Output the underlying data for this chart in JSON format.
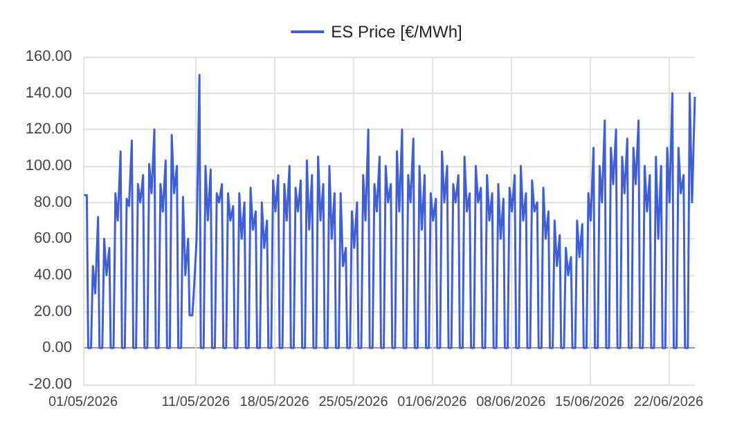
{
  "chart_data": {
    "type": "line",
    "legend": "top",
    "grid": true,
    "marker": "none",
    "line_style": "solid",
    "ylim": [
      -20,
      160
    ],
    "yticks": [
      {
        "value": -20,
        "label": "-20.00"
      },
      {
        "value": 0,
        "label": "0.00"
      },
      {
        "value": 20,
        "label": "20.00"
      },
      {
        "value": 40,
        "label": "40.00"
      },
      {
        "value": 60,
        "label": "60.00"
      },
      {
        "value": 80,
        "label": "80.00"
      },
      {
        "value": 100,
        "label": "100.00"
      },
      {
        "value": 120,
        "label": "120.00"
      },
      {
        "value": 140,
        "label": "140.00"
      },
      {
        "value": 160,
        "label": "160.00"
      }
    ],
    "xlim": [
      "2026-05-01",
      "2026-06-24T08:00"
    ],
    "xticks": [
      {
        "value": "2026-05-01",
        "label": "01/05/2026"
      },
      {
        "value": "2026-05-11",
        "label": "11/05/2026"
      },
      {
        "value": "2026-05-18",
        "label": "18/05/2026"
      },
      {
        "value": "2026-05-25",
        "label": "25/05/2026"
      },
      {
        "value": "2026-06-01",
        "label": "01/06/2026"
      },
      {
        "value": "2026-06-08",
        "label": "08/06/2026"
      },
      {
        "value": "2026-06-15",
        "label": "15/06/2026"
      },
      {
        "value": "2026-06-22",
        "label": "22/06/2026"
      }
    ],
    "series": [
      {
        "name": "ES Price [€/MWh]",
        "color": "#3f5fd4",
        "x": [
          "2026-05-01T02:00",
          "2026-05-01T08:00",
          "2026-05-01T11:00",
          "2026-05-01T17:00",
          "2026-05-01T21:00",
          "2026-05-02T02:00",
          "2026-05-02T08:00",
          "2026-05-02T11:00",
          "2026-05-02T17:00",
          "2026-05-02T21:00",
          "2026-05-03T02:00",
          "2026-05-03T08:00",
          "2026-05-03T11:00",
          "2026-05-03T17:00",
          "2026-05-03T21:00",
          "2026-05-04T02:00",
          "2026-05-04T08:00",
          "2026-05-04T11:00",
          "2026-05-04T17:00",
          "2026-05-04T21:00",
          "2026-05-05T02:00",
          "2026-05-05T08:00",
          "2026-05-05T11:00",
          "2026-05-05T17:00",
          "2026-05-05T21:00",
          "2026-05-06T02:00",
          "2026-05-06T08:00",
          "2026-05-06T11:00",
          "2026-05-06T17:00",
          "2026-05-06T21:00",
          "2026-05-07T02:00",
          "2026-05-07T08:00",
          "2026-05-07T11:00",
          "2026-05-07T17:00",
          "2026-05-07T21:00",
          "2026-05-08T02:00",
          "2026-05-08T08:00",
          "2026-05-08T11:00",
          "2026-05-08T17:00",
          "2026-05-08T21:00",
          "2026-05-09T02:00",
          "2026-05-09T08:00",
          "2026-05-09T11:00",
          "2026-05-09T17:00",
          "2026-05-09T21:00",
          "2026-05-10T02:00",
          "2026-05-10T08:00",
          "2026-05-10T11:00",
          "2026-05-10T17:00",
          "2026-05-10T21:00",
          "2026-05-11T02:00",
          "2026-05-11T08:00",
          "2026-05-11T11:00",
          "2026-05-11T17:00",
          "2026-05-11T21:00",
          "2026-05-12T02:00",
          "2026-05-12T08:00",
          "2026-05-12T11:00",
          "2026-05-12T17:00",
          "2026-05-12T21:00",
          "2026-05-13T02:00",
          "2026-05-13T08:00",
          "2026-05-13T11:00",
          "2026-05-13T17:00",
          "2026-05-13T21:00",
          "2026-05-14T02:00",
          "2026-05-14T08:00",
          "2026-05-14T11:00",
          "2026-05-14T17:00",
          "2026-05-14T21:00",
          "2026-05-15T02:00",
          "2026-05-15T08:00",
          "2026-05-15T11:00",
          "2026-05-15T17:00",
          "2026-05-15T21:00",
          "2026-05-16T02:00",
          "2026-05-16T08:00",
          "2026-05-16T11:00",
          "2026-05-16T17:00",
          "2026-05-16T21:00",
          "2026-05-17T02:00",
          "2026-05-17T08:00",
          "2026-05-17T11:00",
          "2026-05-17T17:00",
          "2026-05-17T21:00",
          "2026-05-18T02:00",
          "2026-05-18T08:00",
          "2026-05-18T11:00",
          "2026-05-18T17:00",
          "2026-05-18T21:00",
          "2026-05-19T02:00",
          "2026-05-19T08:00",
          "2026-05-19T11:00",
          "2026-05-19T17:00",
          "2026-05-19T21:00",
          "2026-05-20T02:00",
          "2026-05-20T08:00",
          "2026-05-20T11:00",
          "2026-05-20T17:00",
          "2026-05-20T21:00",
          "2026-05-21T02:00",
          "2026-05-21T08:00",
          "2026-05-21T11:00",
          "2026-05-21T17:00",
          "2026-05-21T21:00",
          "2026-05-22T02:00",
          "2026-05-22T08:00",
          "2026-05-22T11:00",
          "2026-05-22T17:00",
          "2026-05-22T21:00",
          "2026-05-23T02:00",
          "2026-05-23T08:00",
          "2026-05-23T11:00",
          "2026-05-23T17:00",
          "2026-05-23T21:00",
          "2026-05-24T02:00",
          "2026-05-24T08:00",
          "2026-05-24T11:00",
          "2026-05-24T17:00",
          "2026-05-24T21:00",
          "2026-05-25T02:00",
          "2026-05-25T08:00",
          "2026-05-25T11:00",
          "2026-05-25T17:00",
          "2026-05-25T21:00",
          "2026-05-26T02:00",
          "2026-05-26T08:00",
          "2026-05-26T11:00",
          "2026-05-26T17:00",
          "2026-05-26T21:00",
          "2026-05-27T02:00",
          "2026-05-27T08:00",
          "2026-05-27T11:00",
          "2026-05-27T17:00",
          "2026-05-27T21:00",
          "2026-05-28T02:00",
          "2026-05-28T08:00",
          "2026-05-28T11:00",
          "2026-05-28T17:00",
          "2026-05-28T21:00",
          "2026-05-29T02:00",
          "2026-05-29T08:00",
          "2026-05-29T11:00",
          "2026-05-29T17:00",
          "2026-05-29T21:00",
          "2026-05-30T02:00",
          "2026-05-30T08:00",
          "2026-05-30T11:00",
          "2026-05-30T17:00",
          "2026-05-30T21:00",
          "2026-05-31T02:00",
          "2026-05-31T08:00",
          "2026-05-31T11:00",
          "2026-05-31T17:00",
          "2026-05-31T21:00",
          "2026-06-01T02:00",
          "2026-06-01T08:00",
          "2026-06-01T11:00",
          "2026-06-01T17:00",
          "2026-06-01T21:00",
          "2026-06-02T02:00",
          "2026-06-02T08:00",
          "2026-06-02T11:00",
          "2026-06-02T17:00",
          "2026-06-02T21:00",
          "2026-06-03T02:00",
          "2026-06-03T08:00",
          "2026-06-03T11:00",
          "2026-06-03T17:00",
          "2026-06-03T21:00",
          "2026-06-04T02:00",
          "2026-06-04T08:00",
          "2026-06-04T11:00",
          "2026-06-04T17:00",
          "2026-06-04T21:00",
          "2026-06-05T02:00",
          "2026-06-05T08:00",
          "2026-06-05T11:00",
          "2026-06-05T17:00",
          "2026-06-05T21:00",
          "2026-06-06T02:00",
          "2026-06-06T08:00",
          "2026-06-06T11:00",
          "2026-06-06T17:00",
          "2026-06-06T21:00",
          "2026-06-07T02:00",
          "2026-06-07T08:00",
          "2026-06-07T11:00",
          "2026-06-07T17:00",
          "2026-06-07T21:00",
          "2026-06-08T02:00",
          "2026-06-08T08:00",
          "2026-06-08T11:00",
          "2026-06-08T17:00",
          "2026-06-08T21:00",
          "2026-06-09T02:00",
          "2026-06-09T08:00",
          "2026-06-09T11:00",
          "2026-06-09T17:00",
          "2026-06-09T21:00",
          "2026-06-10T02:00",
          "2026-06-10T08:00",
          "2026-06-10T11:00",
          "2026-06-10T17:00",
          "2026-06-10T21:00",
          "2026-06-11T02:00",
          "2026-06-11T08:00",
          "2026-06-11T11:00",
          "2026-06-11T17:00",
          "2026-06-11T21:00",
          "2026-06-12T02:00",
          "2026-06-12T08:00",
          "2026-06-12T11:00",
          "2026-06-12T17:00",
          "2026-06-12T21:00",
          "2026-06-13T02:00",
          "2026-06-13T08:00",
          "2026-06-13T11:00",
          "2026-06-13T17:00",
          "2026-06-13T21:00",
          "2026-06-14T02:00",
          "2026-06-14T08:00",
          "2026-06-14T11:00",
          "2026-06-14T17:00",
          "2026-06-14T21:00",
          "2026-06-15T02:00",
          "2026-06-15T08:00",
          "2026-06-15T11:00",
          "2026-06-15T17:00",
          "2026-06-15T21:00",
          "2026-06-16T02:00",
          "2026-06-16T08:00",
          "2026-06-16T11:00",
          "2026-06-16T17:00",
          "2026-06-16T21:00",
          "2026-06-17T02:00",
          "2026-06-17T08:00",
          "2026-06-17T11:00",
          "2026-06-17T17:00",
          "2026-06-17T21:00",
          "2026-06-18T02:00",
          "2026-06-18T08:00",
          "2026-06-18T11:00",
          "2026-06-18T17:00",
          "2026-06-18T21:00",
          "2026-06-19T02:00",
          "2026-06-19T08:00",
          "2026-06-19T11:00",
          "2026-06-19T17:00",
          "2026-06-19T21:00",
          "2026-06-20T02:00",
          "2026-06-20T08:00",
          "2026-06-20T11:00",
          "2026-06-20T17:00",
          "2026-06-20T21:00",
          "2026-06-21T02:00",
          "2026-06-21T08:00",
          "2026-06-21T11:00",
          "2026-06-21T17:00",
          "2026-06-21T21:00",
          "2026-06-22T02:00",
          "2026-06-22T08:00",
          "2026-06-22T11:00",
          "2026-06-22T17:00",
          "2026-06-22T21:00",
          "2026-06-23T02:00",
          "2026-06-23T08:00",
          "2026-06-23T11:00",
          "2026-06-23T17:00",
          "2026-06-23T21:00",
          "2026-06-24T02:00",
          "2026-06-24T08:00"
        ],
        "values": [
          84,
          84,
          0,
          0,
          45,
          30,
          72,
          0,
          0,
          60,
          40,
          55,
          0,
          0,
          85,
          70,
          108,
          0,
          0,
          82,
          78,
          114,
          0,
          0,
          90,
          80,
          95,
          0,
          0,
          101,
          85,
          120,
          0,
          0,
          90,
          75,
          103,
          0,
          0,
          117,
          85,
          100,
          0,
          0,
          83,
          40,
          60,
          18,
          18,
          35,
          60,
          150,
          0,
          0,
          100,
          70,
          98,
          0,
          0,
          85,
          80,
          90,
          0,
          0,
          85,
          70,
          78,
          0,
          0,
          85,
          60,
          80,
          0,
          0,
          88,
          65,
          75,
          0,
          0,
          80,
          55,
          70,
          0,
          0,
          92,
          75,
          95,
          0,
          0,
          90,
          70,
          100,
          0,
          0,
          88,
          75,
          92,
          0,
          0,
          103,
          65,
          95,
          0,
          0,
          105,
          70,
          90,
          0,
          0,
          100,
          60,
          85,
          0,
          0,
          85,
          45,
          55,
          0,
          0,
          75,
          55,
          80,
          0,
          0,
          95,
          70,
          120,
          0,
          0,
          90,
          75,
          105,
          0,
          0,
          100,
          80,
          90,
          0,
          0,
          108,
          75,
          120,
          0,
          0,
          95,
          80,
          115,
          0,
          0,
          100,
          65,
          95,
          0,
          0,
          85,
          70,
          82,
          0,
          0,
          108,
          80,
          100,
          0,
          0,
          90,
          80,
          95,
          0,
          0,
          105,
          75,
          85,
          0,
          0,
          100,
          80,
          88,
          0,
          0,
          95,
          70,
          85,
          0,
          0,
          90,
          60,
          82,
          0,
          0,
          88,
          75,
          95,
          0,
          0,
          100,
          70,
          85,
          0,
          0,
          92,
          75,
          80,
          0,
          0,
          88,
          60,
          75,
          0,
          0,
          70,
          45,
          62,
          0,
          0,
          55,
          40,
          50,
          0,
          0,
          70,
          50,
          68,
          0,
          0,
          85,
          70,
          110,
          0,
          0,
          100,
          80,
          125,
          0,
          0,
          110,
          90,
          120,
          0,
          0,
          105,
          85,
          115,
          0,
          0,
          110,
          90,
          125,
          0,
          0,
          100,
          75,
          95,
          0,
          0,
          105,
          60,
          100,
          0,
          0,
          110,
          80,
          140,
          0,
          0,
          110,
          85,
          95,
          0,
          0,
          140,
          80,
          138
        ]
      }
    ]
  }
}
